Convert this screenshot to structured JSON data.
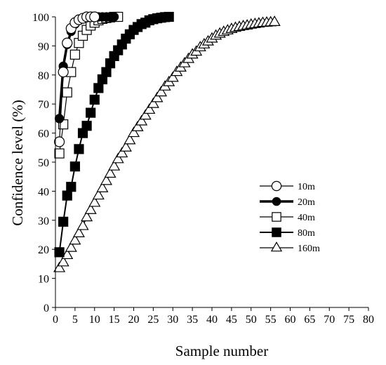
{
  "chart_data": {
    "type": "line",
    "title": "",
    "xlabel": "Sample number",
    "ylabel": "Confidence level (%)",
    "xlim": [
      0,
      80
    ],
    "ylim": [
      0,
      100
    ],
    "xticks": [
      0,
      5,
      10,
      15,
      20,
      25,
      30,
      35,
      40,
      45,
      50,
      55,
      60,
      65,
      70,
      75,
      80
    ],
    "yticks": [
      0,
      10,
      20,
      30,
      40,
      50,
      60,
      70,
      80,
      90,
      100
    ],
    "grid": false,
    "legend_position": "right-middle",
    "series": [
      {
        "name": "10m",
        "marker": "circle-open",
        "line_weight": "thin",
        "x": [
          1,
          2,
          3,
          4,
          5,
          6,
          7,
          8,
          9,
          10
        ],
        "values": [
          57,
          81,
          91,
          96,
          98,
          99,
          99.5,
          100,
          100,
          100
        ]
      },
      {
        "name": "20m",
        "marker": "circle-filled",
        "line_weight": "thick",
        "x": [
          1,
          2,
          3,
          4,
          5,
          6,
          7,
          8,
          9,
          10,
          11,
          12,
          13,
          14,
          15
        ],
        "values": [
          65,
          83,
          90.5,
          95,
          97.5,
          98.8,
          99.4,
          99.7,
          99.9,
          100,
          100,
          100,
          100,
          100,
          100
        ]
      },
      {
        "name": "40m",
        "marker": "square-open",
        "line_weight": "thin",
        "x": [
          1,
          2,
          3,
          4,
          5,
          6,
          7,
          8,
          9,
          10,
          11,
          12,
          13,
          14,
          15,
          16
        ],
        "values": [
          53,
          63,
          74,
          81,
          87,
          91,
          93.5,
          95.5,
          97,
          98,
          98.8,
          99.3,
          99.6,
          99.8,
          100,
          100
        ]
      },
      {
        "name": "80m",
        "marker": "square-filled",
        "line_weight": "medium",
        "x": [
          1,
          2,
          3,
          4,
          5,
          6,
          7,
          8,
          9,
          10,
          11,
          12,
          13,
          14,
          15,
          16,
          17,
          18,
          19,
          20,
          21,
          22,
          23,
          24,
          25,
          26,
          27,
          28,
          29
        ],
        "values": [
          19,
          29.5,
          38.5,
          41.5,
          48.5,
          54.5,
          60,
          62.5,
          67,
          71.5,
          75.5,
          78.5,
          81,
          84,
          86.5,
          88.5,
          90.5,
          92.5,
          94,
          95.5,
          96.5,
          97.5,
          98,
          98.8,
          99.2,
          99.5,
          99.7,
          99.9,
          100
        ]
      },
      {
        "name": "160m",
        "marker": "triangle-open",
        "line_weight": "thin",
        "x": [
          1,
          2,
          3,
          4,
          5,
          6,
          7,
          8,
          9,
          10,
          11,
          12,
          13,
          14,
          15,
          16,
          17,
          18,
          19,
          20,
          21,
          22,
          23,
          24,
          25,
          26,
          27,
          28,
          29,
          30,
          31,
          32,
          33,
          34,
          35,
          36,
          37,
          38,
          39,
          40,
          41,
          42,
          43,
          44,
          45,
          46,
          47,
          48,
          49,
          50,
          51,
          52,
          53,
          54,
          55,
          56
        ],
        "values": [
          13.5,
          15.5,
          18,
          20.5,
          23,
          25.5,
          28,
          31,
          33.5,
          36,
          38.5,
          41,
          43.5,
          46,
          48.5,
          51,
          53,
          55,
          57.5,
          60,
          62,
          64,
          66,
          68,
          70,
          72,
          74,
          76,
          77.5,
          79,
          81,
          82.5,
          84,
          85.5,
          87,
          88,
          89.5,
          90.5,
          91.5,
          92.5,
          93.5,
          94.2,
          94.8,
          95.3,
          95.8,
          96.2,
          96.5,
          96.8,
          97,
          97.3,
          97.5,
          97.7,
          97.9,
          98,
          98.1,
          98.2
        ]
      }
    ]
  }
}
